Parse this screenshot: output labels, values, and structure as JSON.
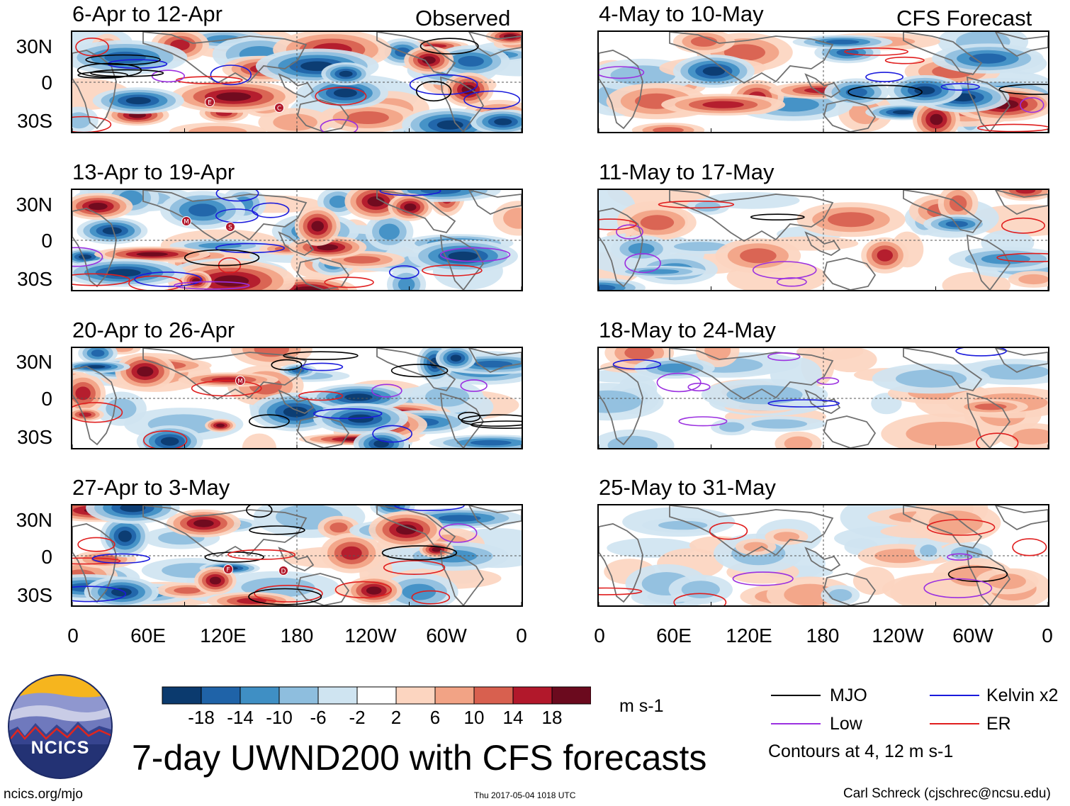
{
  "header": {
    "left_label": "Observed",
    "right_label": "CFS Forecast"
  },
  "panels": {
    "observed": [
      {
        "title": "6-Apr to 12-Apr",
        "events": [
          "E",
          "C"
        ]
      },
      {
        "title": "13-Apr to 19-Apr",
        "events": [
          "M",
          "S"
        ]
      },
      {
        "title": "20-Apr to 26-Apr",
        "events": [
          "M"
        ]
      },
      {
        "title": "27-Apr to 3-May",
        "events": [
          "F",
          "D"
        ]
      }
    ],
    "forecast": [
      {
        "title": "4-May to 10-May"
      },
      {
        "title": "11-May to 17-May"
      },
      {
        "title": "18-May to 24-May"
      },
      {
        "title": "25-May to 31-May"
      }
    ]
  },
  "axes": {
    "lat_labels": [
      "30N",
      "0",
      "30S"
    ],
    "lon_labels": [
      "0",
      "60E",
      "120E",
      "180",
      "120W",
      "60W",
      "0"
    ]
  },
  "colorbar": {
    "unit": "m s-1",
    "colors": [
      "#0b3a6e",
      "#1f63a8",
      "#3f8fc4",
      "#8ebede",
      "#cfe4f1",
      "#ffffff",
      "#fcd5c0",
      "#f2a385",
      "#d8604f",
      "#b2182b",
      "#6b0a1e"
    ],
    "labels": [
      "-18",
      "-14",
      "-10",
      "-6",
      "-2",
      "2",
      "6",
      "10",
      "14",
      "18"
    ]
  },
  "legend": {
    "items": [
      {
        "label": "MJO",
        "color": "#000000"
      },
      {
        "label": "Kelvin x2",
        "color": "#1a1adc"
      },
      {
        "label": "Low",
        "color": "#9b30e0"
      },
      {
        "label": "ER",
        "color": "#e01e1e"
      }
    ],
    "note": "Contours at 4, 12 m s-1"
  },
  "logo": {
    "text": "NCICS"
  },
  "footer": {
    "title": "7-day UWND200 with CFS forecasts",
    "url": "ncics.org/mjo",
    "timestamp": "Thu 2017-05-04 1018 UTC",
    "credit": "Carl Schreck (cjschrec@ncsu.edu)"
  }
}
